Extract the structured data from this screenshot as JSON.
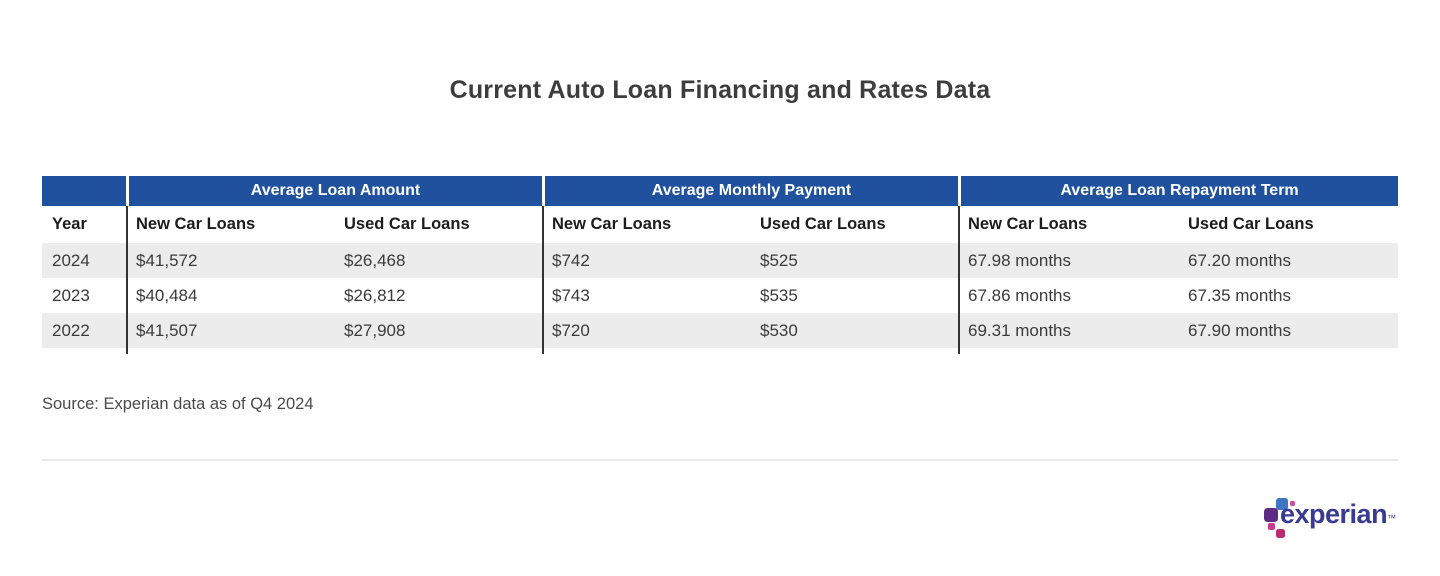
{
  "chart_data": {
    "type": "table",
    "title": "Current Auto Loan Financing and Rates Data",
    "column_groups": [
      "Average Loan Amount",
      "Average Monthly Payment",
      "Average Loan Repayment Term"
    ],
    "columns": [
      "Year",
      "New Car Loans",
      "Used Car Loans",
      "New Car Loans",
      "Used Car Loans",
      "New Car Loans",
      "Used Car Loans"
    ],
    "rows": [
      [
        "2024",
        "$41,572",
        "$26,468",
        "$742",
        "$525",
        "67.98 months",
        "67.20 months"
      ],
      [
        "2023",
        "$40,484",
        "$26,812",
        "$743",
        "$535",
        "67.86 months",
        "67.35 months"
      ],
      [
        "2022",
        "$41,507",
        "$27,908",
        "$720",
        "$530",
        "69.31 months",
        "67.90 months"
      ]
    ],
    "source": "Source: Experian data as of Q4 2024",
    "layout": {
      "row_striping": "alternating gray starting with first data row",
      "group_header_style": "navy bar with white bold centered text",
      "group_separators": "dark vertical lines between Year, group 1, 2, 3"
    }
  },
  "branding": {
    "logo_text": "experian",
    "trademark": "™"
  },
  "colors": {
    "header_navy": "#1f519e",
    "row_stripe_gray": "#ececec",
    "separator_dark": "#333333",
    "divider_gray": "#e9e9e9",
    "logo_indigo": "#393b92",
    "logo_blue": "#3e76c3",
    "logo_purple": "#5c2b82",
    "logo_magenta": "#cb3a8c",
    "logo_pink": "#c94f9f",
    "logo_crimson": "#b62d72"
  }
}
